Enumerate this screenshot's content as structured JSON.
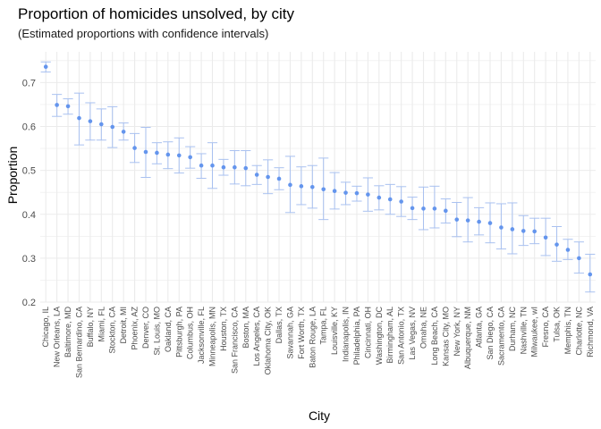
{
  "chart_data": {
    "type": "scatter",
    "title": "Proportion of homicides unsolved, by city",
    "subtitle": "(Estimated proportions with confidence intervals)",
    "xlabel": "City",
    "ylabel": "Proportion",
    "ylim": [
      0.2,
      0.77
    ],
    "yticks": [
      "0.2",
      "0.3",
      "0.4",
      "0.5",
      "0.6",
      "0.7"
    ],
    "grid": true,
    "colors": {
      "point": "#6495ED",
      "errorbar": "#A9C1F0",
      "grid": "#EBEBEB"
    },
    "categories": [
      "Chicago, IL",
      "New Orleans, LA",
      "Baltimore, MD",
      "San Bernardino, CA",
      "Buffalo, NY",
      "Miami, FL",
      "Stockton, CA",
      "Detroit, MI",
      "Phoenix, AZ",
      "Denver, CO",
      "St. Louis, MO",
      "Oakland, CA",
      "Pittsburgh, PA",
      "Columbus, OH",
      "Jacksonville, FL",
      "Minneapolis, MN",
      "Houston, TX",
      "San Francisco, CA",
      "Boston, MA",
      "Los Angeles, CA",
      "Oklahoma City, OK",
      "Dallas, TX",
      "Savannah, GA",
      "Fort Worth, TX",
      "Baton Rouge, LA",
      "Tampa, FL",
      "Louisville, KY",
      "Indianapolis, IN",
      "Philadelphia, PA",
      "Cincinnati, OH",
      "Washington, DC",
      "Birmingham, AL",
      "San Antonio, TX",
      "Las Vegas, NV",
      "Omaha, NE",
      "Long Beach, CA",
      "Kansas City, MO",
      "New York, NY",
      "Albuquerque, NM",
      "Atlanta, GA",
      "San Diego, CA",
      "Sacramento, CA",
      "Durham, NC",
      "Nashville, TN",
      "Milwaukee, wI",
      "Fresno, CA",
      "Tulsa, OK",
      "Memphis, TN",
      "Charlotte, NC",
      "Richmond, VA"
    ],
    "series": [
      {
        "estimate": [
          0.736,
          0.649,
          0.646,
          0.619,
          0.612,
          0.605,
          0.599,
          0.588,
          0.551,
          0.542,
          0.54,
          0.536,
          0.534,
          0.53,
          0.511,
          0.511,
          0.507,
          0.507,
          0.505,
          0.49,
          0.485,
          0.481,
          0.467,
          0.464,
          0.462,
          0.457,
          0.453,
          0.449,
          0.448,
          0.445,
          0.438,
          0.434,
          0.429,
          0.414,
          0.413,
          0.413,
          0.408,
          0.388,
          0.386,
          0.383,
          0.38,
          0.37,
          0.366,
          0.362,
          0.361,
          0.347,
          0.331,
          0.319,
          0.3,
          0.263
        ],
        "lower": [
          0.724,
          0.623,
          0.628,
          0.558,
          0.569,
          0.569,
          0.552,
          0.569,
          0.518,
          0.484,
          0.515,
          0.504,
          0.494,
          0.505,
          0.482,
          0.459,
          0.489,
          0.469,
          0.465,
          0.468,
          0.447,
          0.456,
          0.404,
          0.422,
          0.414,
          0.388,
          0.412,
          0.422,
          0.43,
          0.407,
          0.41,
          0.4,
          0.395,
          0.388,
          0.365,
          0.369,
          0.38,
          0.349,
          0.337,
          0.353,
          0.335,
          0.321,
          0.31,
          0.329,
          0.333,
          0.306,
          0.293,
          0.297,
          0.266,
          0.223
        ],
        "upper": [
          0.747,
          0.673,
          0.663,
          0.676,
          0.654,
          0.64,
          0.645,
          0.608,
          0.584,
          0.598,
          0.563,
          0.565,
          0.574,
          0.554,
          0.538,
          0.563,
          0.525,
          0.545,
          0.545,
          0.511,
          0.524,
          0.506,
          0.532,
          0.508,
          0.511,
          0.528,
          0.495,
          0.473,
          0.464,
          0.483,
          0.465,
          0.468,
          0.463,
          0.439,
          0.462,
          0.464,
          0.435,
          0.427,
          0.438,
          0.415,
          0.426,
          0.424,
          0.426,
          0.397,
          0.391,
          0.391,
          0.372,
          0.343,
          0.337,
          0.309
        ]
      }
    ]
  }
}
